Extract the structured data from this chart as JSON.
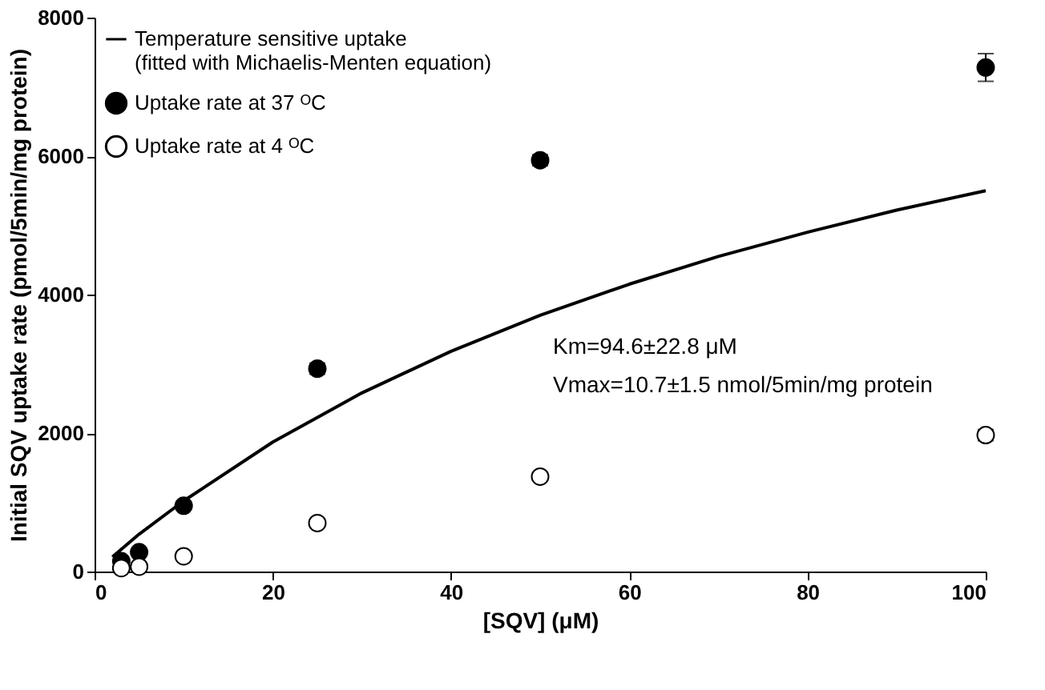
{
  "chart_data": {
    "type": "scatter",
    "xlabel": "[SQV] (μM)",
    "ylabel": "Initial SQV uptake rate (pmol/5min/mg protein)",
    "xlim": [
      0,
      100
    ],
    "xticks": [
      0,
      20,
      40,
      60,
      80,
      100
    ],
    "ylim": [
      0,
      8000
    ],
    "yticks": [
      0,
      2000,
      4000,
      6000,
      8000
    ],
    "grid": false,
    "legend": "top left",
    "marker": "circle",
    "series": [
      {
        "name": "Temperature sensitive uptake\n(fitted with Michaelis-Menten equation)",
        "type": "line",
        "color": "#000000",
        "marker": "none",
        "line_style": "solid",
        "x": [
          2,
          5,
          10,
          20,
          30,
          40,
          50,
          60,
          70,
          80,
          90,
          100
        ],
        "values": [
          210,
          540,
          1020,
          1870,
          2580,
          3180,
          3700,
          4150,
          4550,
          4900,
          5220,
          5500
        ]
      },
      {
        "name": "Uptake rate at 37 ᴼC",
        "color": "#000000",
        "x": [
          3,
          5,
          10,
          25,
          50,
          100
        ],
        "values": [
          150,
          280,
          950,
          2930,
          5940,
          7280
        ],
        "errors": [
          null,
          null,
          60,
          80,
          80,
          200
        ]
      },
      {
        "name": "Uptake rate at 4 ᴼC",
        "color": "#ffffff",
        "x": [
          3,
          5,
          10,
          25,
          50,
          100
        ],
        "values": [
          50,
          70,
          220,
          700,
          1370,
          1970
        ],
        "errors": [
          null,
          null,
          null,
          null,
          null,
          80
        ]
      }
    ],
    "annotations": [
      "Km=94.6±22.8 μM",
      "Vmax=10.7±1.5 nmol/5min/mg protein"
    ]
  }
}
